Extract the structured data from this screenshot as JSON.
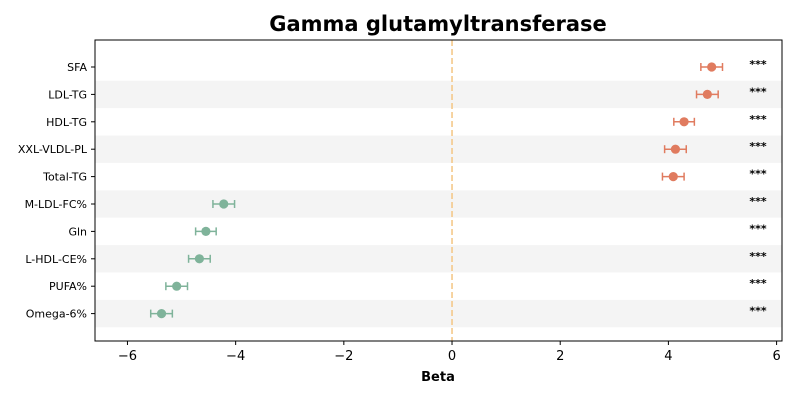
{
  "chart_data": {
    "type": "forest",
    "title": "Gamma glutamyltransferase",
    "xlabel": "Beta",
    "xlim": [
      -6.6,
      6.1
    ],
    "xticks": [
      -6,
      -4,
      -2,
      0,
      2,
      4,
      6
    ],
    "xtick_labels": [
      "−6",
      "−4",
      "−2",
      "0",
      "2",
      "4",
      "6"
    ],
    "reference_line": 0,
    "grid": false,
    "alternating_row_shading": true,
    "colors": {
      "positive": "#e07b5f",
      "negative": "#7fb39a",
      "reference_line": "#f5c98a",
      "row_shade": "#f4f4f4"
    },
    "rows": [
      {
        "label": "SFA",
        "beta": 4.8,
        "ci": [
          4.6,
          5.0
        ],
        "sig": "***"
      },
      {
        "label": "LDL-TG",
        "beta": 4.72,
        "ci": [
          4.52,
          4.92
        ],
        "sig": "***"
      },
      {
        "label": "HDL-TG",
        "beta": 4.29,
        "ci": [
          4.1,
          4.48
        ],
        "sig": "***"
      },
      {
        "label": "XXL-VLDL-PL",
        "beta": 4.13,
        "ci": [
          3.93,
          4.33
        ],
        "sig": "***"
      },
      {
        "label": "Total-TG",
        "beta": 4.09,
        "ci": [
          3.89,
          4.29
        ],
        "sig": "***"
      },
      {
        "label": "M-LDL-FC%",
        "beta": -4.22,
        "ci": [
          -4.42,
          -4.02
        ],
        "sig": "***"
      },
      {
        "label": "Gln",
        "beta": -4.55,
        "ci": [
          -4.74,
          -4.36
        ],
        "sig": "***"
      },
      {
        "label": "L-HDL-CE%",
        "beta": -4.67,
        "ci": [
          -4.87,
          -4.47
        ],
        "sig": "***"
      },
      {
        "label": "PUFA%",
        "beta": -5.09,
        "ci": [
          -5.29,
          -4.89
        ],
        "sig": "***"
      },
      {
        "label": "Omega-6%",
        "beta": -5.37,
        "ci": [
          -5.57,
          -5.17
        ],
        "sig": "***"
      }
    ]
  }
}
